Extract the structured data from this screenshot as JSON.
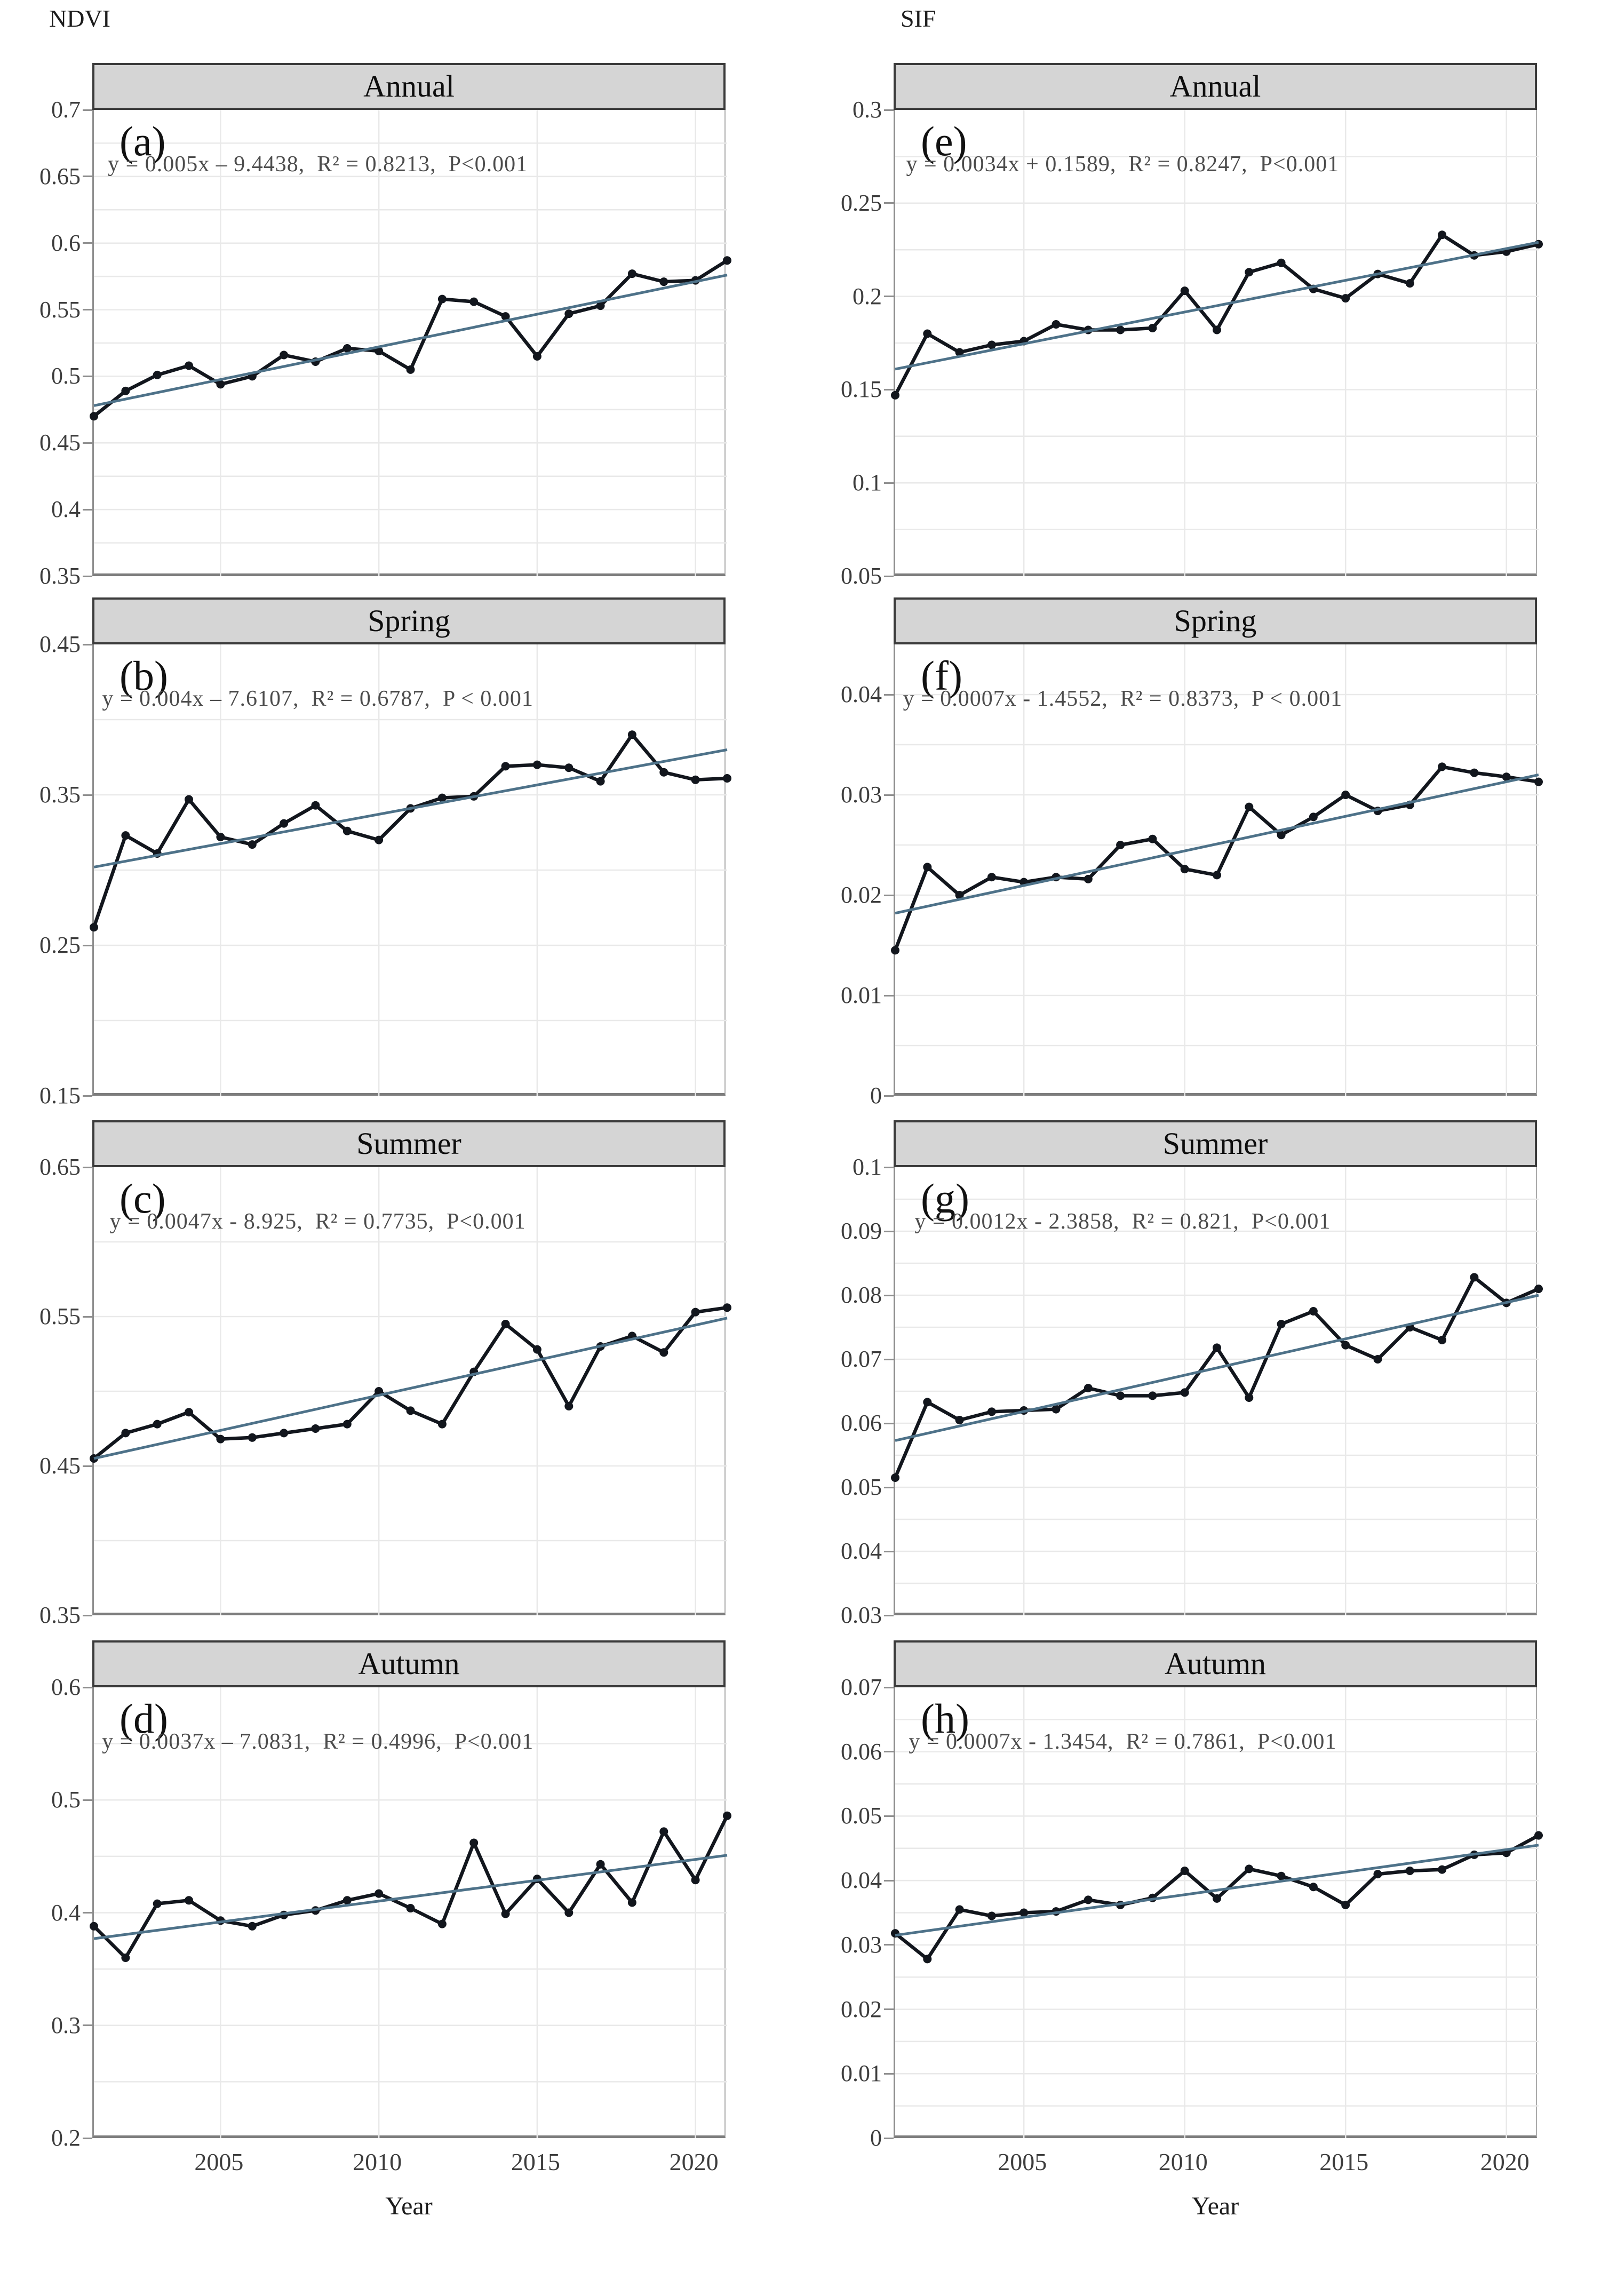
{
  "figure": {
    "columns": [
      {
        "axis_title": "NDVI"
      },
      {
        "axis_title": "SIF"
      }
    ],
    "x_axis_label": "Year",
    "x_ticks": [
      2005,
      2010,
      2015,
      2020
    ],
    "colors": {
      "data_line": "#12161d",
      "trend_line": "#4e7289",
      "grid": "#e9e9e9",
      "title_bar_bg": "#d5d5d5",
      "title_bar_border": "#3b3b3b",
      "frame": "#8f8f8f"
    }
  },
  "chart_data": [
    {
      "type": "line",
      "panel_label": "(a)",
      "title": "Annual",
      "column": "NDVI",
      "equation": "y = 0.005x – 9.4438,  R² = 0.8213,  P<0.001",
      "x_start": 2001,
      "x_end": 2021,
      "ymin": 0.35,
      "ymax": 0.7,
      "grid_step": 0.025,
      "y_ticks": [
        {
          "label": "0.7",
          "v": 0.7
        },
        {
          "label": "0.65",
          "v": 0.65
        },
        {
          "label": "0.6",
          "v": 0.6
        },
        {
          "label": "0.55",
          "v": 0.55
        },
        {
          "label": "0.5",
          "v": 0.5
        },
        {
          "label": "0.45",
          "v": 0.45
        },
        {
          "label": "0.4",
          "v": 0.4
        },
        {
          "label": "0.35",
          "v": 0.35
        }
      ],
      "values": [
        0.47,
        0.489,
        0.501,
        0.508,
        0.494,
        0.5,
        0.516,
        0.511,
        0.521,
        0.519,
        0.505,
        0.558,
        0.556,
        0.545,
        0.515,
        0.547,
        0.553,
        0.577,
        0.571,
        0.572,
        0.587
      ],
      "trend": {
        "y_start": 0.478,
        "y_end": 0.576
      }
    },
    {
      "type": "line",
      "panel_label": "(b)",
      "title": "Spring",
      "column": "NDVI",
      "equation": "y = 0.004x – 7.6107,  R² = 0.6787,  P < 0.001",
      "x_start": 2001,
      "x_end": 2021,
      "ymin": 0.15,
      "ymax": 0.45,
      "grid_step": 0.05,
      "y_ticks": [
        {
          "label": "0.45",
          "v": 0.45
        },
        {
          "label": "0.35",
          "v": 0.35
        },
        {
          "label": "0.25",
          "v": 0.25
        },
        {
          "label": "0.15",
          "v": 0.15
        }
      ],
      "values": [
        0.262,
        0.323,
        0.311,
        0.347,
        0.322,
        0.317,
        0.331,
        0.343,
        0.326,
        0.32,
        0.341,
        0.348,
        0.349,
        0.369,
        0.37,
        0.368,
        0.359,
        0.39,
        0.365,
        0.36,
        0.361
      ],
      "trend": {
        "y_start": 0.302,
        "y_end": 0.38
      }
    },
    {
      "type": "line",
      "panel_label": "(c)",
      "title": "Summer",
      "column": "NDVI",
      "equation": "y = 0.0047x - 8.925,  R² = 0.7735,  P<0.001",
      "x_start": 2001,
      "x_end": 2021,
      "ymin": 0.35,
      "ymax": 0.65,
      "grid_step": 0.05,
      "y_ticks": [
        {
          "label": "0.65",
          "v": 0.65
        },
        {
          "label": "0.55",
          "v": 0.55
        },
        {
          "label": "0.45",
          "v": 0.45
        },
        {
          "label": "0.35",
          "v": 0.35
        }
      ],
      "values": [
        0.455,
        0.472,
        0.478,
        0.486,
        0.468,
        0.469,
        0.472,
        0.475,
        0.478,
        0.5,
        0.487,
        0.478,
        0.513,
        0.545,
        0.528,
        0.49,
        0.53,
        0.537,
        0.526,
        0.553,
        0.556
      ],
      "trend": {
        "y_start": 0.455,
        "y_end": 0.549
      }
    },
    {
      "type": "line",
      "panel_label": "(d)",
      "title": "Autumn",
      "column": "NDVI",
      "equation": "y = 0.0037x – 7.0831,  R² = 0.4996,  P<0.001",
      "x_start": 2001,
      "x_end": 2021,
      "ymin": 0.2,
      "ymax": 0.6,
      "grid_step": 0.05,
      "y_ticks": [
        {
          "label": "0.6",
          "v": 0.6
        },
        {
          "label": "0.5",
          "v": 0.5
        },
        {
          "label": "0.4",
          "v": 0.4
        },
        {
          "label": "0.3",
          "v": 0.3
        },
        {
          "label": "0.2",
          "v": 0.2
        }
      ],
      "values": [
        0.388,
        0.36,
        0.408,
        0.411,
        0.393,
        0.388,
        0.398,
        0.402,
        0.411,
        0.417,
        0.404,
        0.39,
        0.462,
        0.399,
        0.43,
        0.4,
        0.443,
        0.409,
        0.472,
        0.429,
        0.486
      ],
      "trend": {
        "y_start": 0.377,
        "y_end": 0.451
      }
    },
    {
      "type": "line",
      "panel_label": "(e)",
      "title": "Annual",
      "column": "SIF",
      "equation": "y = 0.0034x + 0.1589,  R² = 0.8247,  P<0.001",
      "x_start": 2001,
      "x_end": 2021,
      "ymin": 0.05,
      "ymax": 0.3,
      "grid_step": 0.025,
      "y_ticks": [
        {
          "label": "0.3",
          "v": 0.3
        },
        {
          "label": "0.25",
          "v": 0.25
        },
        {
          "label": "0.2",
          "v": 0.2
        },
        {
          "label": "0.15",
          "v": 0.15
        },
        {
          "label": "0.1",
          "v": 0.1
        },
        {
          "label": "0.05",
          "v": 0.05
        }
      ],
      "values": [
        0.147,
        0.18,
        0.17,
        0.174,
        0.176,
        0.185,
        0.182,
        0.182,
        0.183,
        0.203,
        0.182,
        0.213,
        0.218,
        0.204,
        0.199,
        0.212,
        0.207,
        0.233,
        0.222,
        0.224,
        0.228
      ],
      "trend": {
        "y_start": 0.161,
        "y_end": 0.229
      }
    },
    {
      "type": "line",
      "panel_label": "(f)",
      "title": "Spring",
      "column": "SIF",
      "equation": "y = 0.0007x - 1.4552,  R² = 0.8373,  P < 0.001",
      "x_start": 2001,
      "x_end": 2021,
      "ymin": 0,
      "ymax": 0.045,
      "grid_step": 0.005,
      "y_ticks": [
        {
          "label": "0.04",
          "v": 0.04
        },
        {
          "label": "0.03",
          "v": 0.03
        },
        {
          "label": "0.02",
          "v": 0.02
        },
        {
          "label": "0.01",
          "v": 0.01
        },
        {
          "label": "0",
          "v": 0
        }
      ],
      "values": [
        0.0145,
        0.0228,
        0.02,
        0.0218,
        0.0213,
        0.0218,
        0.0216,
        0.025,
        0.0256,
        0.0226,
        0.022,
        0.0288,
        0.026,
        0.0278,
        0.03,
        0.0284,
        0.029,
        0.0328,
        0.0322,
        0.0318,
        0.0313
      ],
      "trend": {
        "y_start": 0.0182,
        "y_end": 0.032
      }
    },
    {
      "type": "line",
      "panel_label": "(g)",
      "title": "Summer",
      "column": "SIF",
      "equation": "y = 0.0012x - 2.3858,  R² = 0.821,  P<0.001",
      "x_start": 2001,
      "x_end": 2021,
      "ymin": 0.03,
      "ymax": 0.1,
      "grid_step": 0.005,
      "y_ticks": [
        {
          "label": "0.1",
          "v": 0.1
        },
        {
          "label": "0.09",
          "v": 0.09
        },
        {
          "label": "0.08",
          "v": 0.08
        },
        {
          "label": "0.07",
          "v": 0.07
        },
        {
          "label": "0.06",
          "v": 0.06
        },
        {
          "label": "0.05",
          "v": 0.05
        },
        {
          "label": "0.04",
          "v": 0.04
        },
        {
          "label": "0.03",
          "v": 0.03
        }
      ],
      "values": [
        0.0515,
        0.0633,
        0.0605,
        0.0618,
        0.062,
        0.0622,
        0.0655,
        0.0643,
        0.0643,
        0.0648,
        0.0718,
        0.064,
        0.0755,
        0.0775,
        0.0722,
        0.07,
        0.075,
        0.073,
        0.0828,
        0.0788,
        0.081
      ],
      "trend": {
        "y_start": 0.0573,
        "y_end": 0.08
      }
    },
    {
      "type": "line",
      "panel_label": "(h)",
      "title": "Autumn",
      "column": "SIF",
      "equation": "y = 0.0007x - 1.3454,  R² = 0.7861,  P<0.001",
      "x_start": 2001,
      "x_end": 2021,
      "ymin": 0,
      "ymax": 0.07,
      "grid_step": 0.005,
      "y_ticks": [
        {
          "label": "0.07",
          "v": 0.07
        },
        {
          "label": "0.06",
          "v": 0.06
        },
        {
          "label": "0.05",
          "v": 0.05
        },
        {
          "label": "0.04",
          "v": 0.04
        },
        {
          "label": "0.03",
          "v": 0.03
        },
        {
          "label": "0.02",
          "v": 0.02
        },
        {
          "label": "0.01",
          "v": 0.01
        },
        {
          "label": "0",
          "v": 0
        }
      ],
      "values": [
        0.0318,
        0.0278,
        0.0355,
        0.0345,
        0.035,
        0.0352,
        0.037,
        0.0362,
        0.0373,
        0.0415,
        0.0372,
        0.0418,
        0.0407,
        0.039,
        0.0362,
        0.041,
        0.0415,
        0.0417,
        0.044,
        0.0443,
        0.047
      ],
      "trend": {
        "y_start": 0.0315,
        "y_end": 0.0455
      }
    }
  ]
}
